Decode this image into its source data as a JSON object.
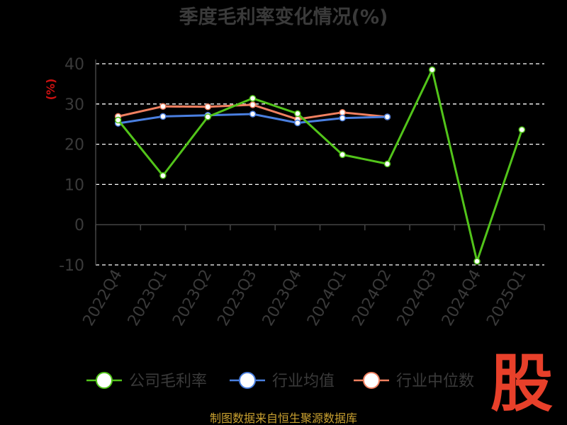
{
  "chart_data": {
    "type": "line",
    "title": "季度毛利率变化情况(%)",
    "ylabel": "(%)",
    "categories": [
      "2022Q4",
      "2023Q1",
      "2023Q2",
      "2023Q3",
      "2023Q4",
      "2024Q1",
      "2024Q2",
      "2024Q3",
      "2024Q4",
      "2025Q1"
    ],
    "yticks": [
      "-10",
      "0",
      "10",
      "20",
      "30",
      "40"
    ],
    "ylim": [
      -10,
      40
    ],
    "grid": true,
    "legend_position": "bottom",
    "series": [
      {
        "name": "公司毛利率",
        "color": "#52c41a",
        "values": [
          26.0,
          12.2,
          26.8,
          31.4,
          27.6,
          17.4,
          15.1,
          38.5,
          -9.1,
          23.6
        ]
      },
      {
        "name": "行业均值",
        "color": "#4a7fe0",
        "values": [
          25.2,
          26.9,
          27.2,
          27.5,
          25.3,
          26.5,
          26.8,
          null,
          null,
          null
        ]
      },
      {
        "name": "行业中位数",
        "color": "#f08060",
        "values": [
          26.9,
          29.4,
          29.3,
          29.8,
          26.2,
          27.9,
          26.8,
          null,
          null,
          null
        ]
      }
    ]
  },
  "footer": {
    "source": "制图数据来自恒生聚源数据库"
  },
  "logo": {
    "text": "股"
  }
}
